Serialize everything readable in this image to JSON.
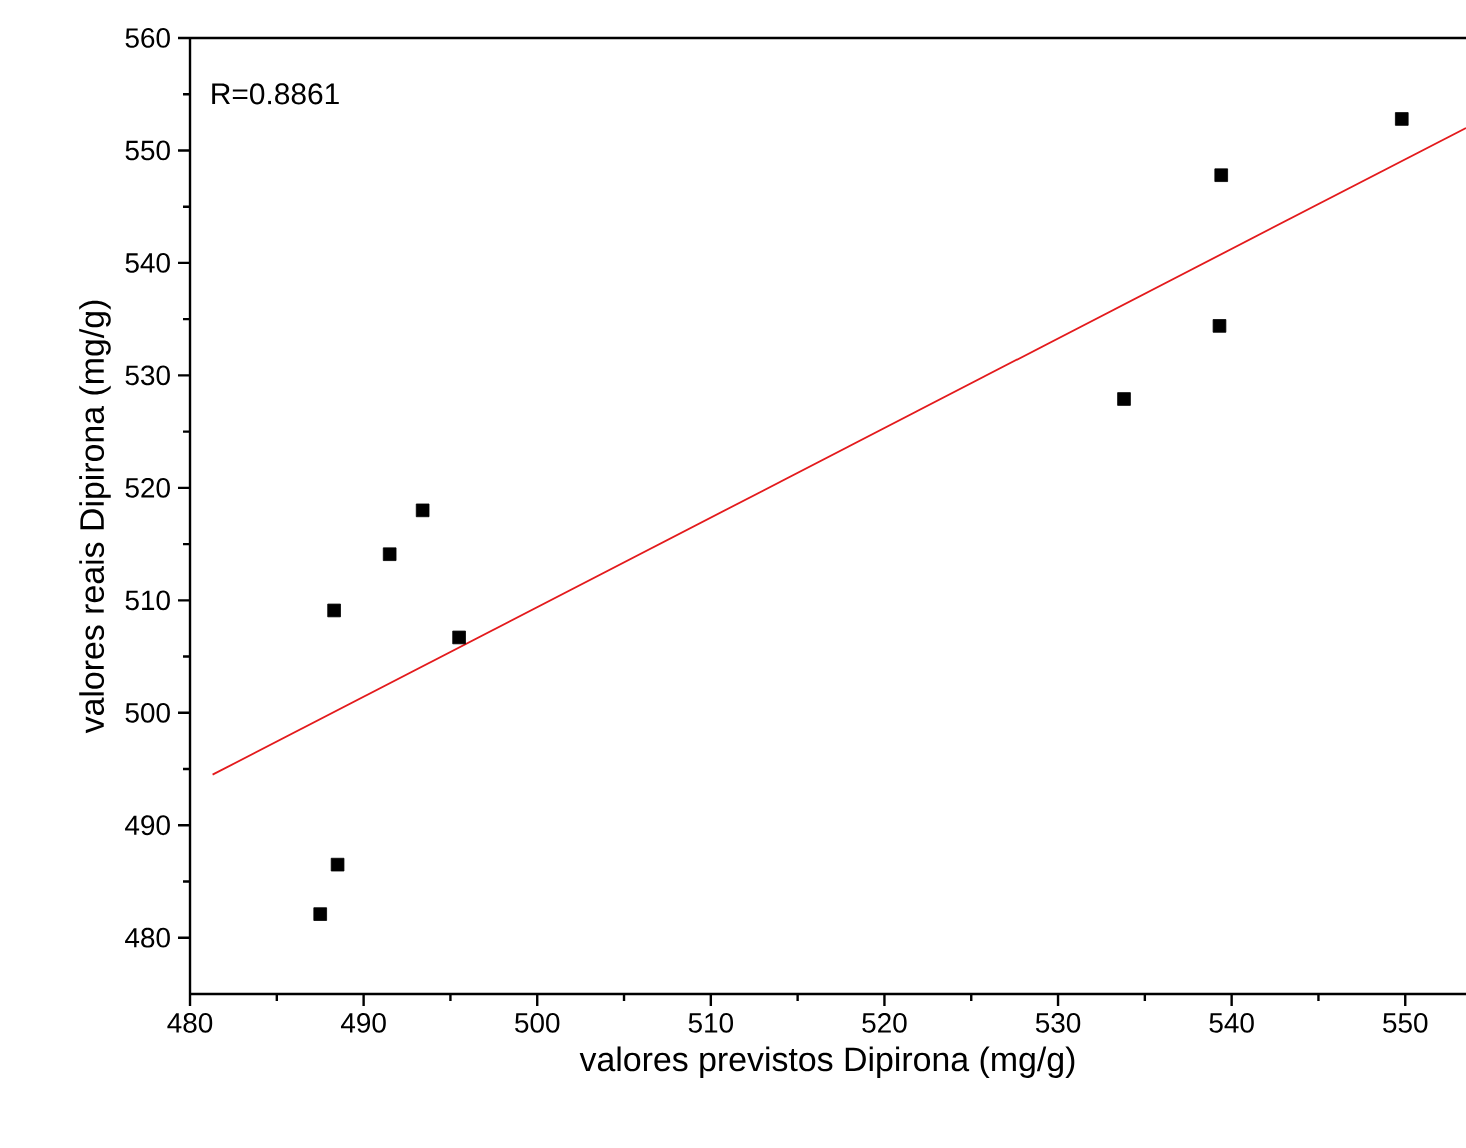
{
  "chart_data": {
    "type": "scatter",
    "xlabel": "valores previstos Dipirona (mg/g)",
    "ylabel": "valores reais Dipirona (mg/g)",
    "xlim": [
      480,
      553.5
    ],
    "ylim": [
      475,
      560
    ],
    "xticks": [
      480,
      490,
      500,
      510,
      520,
      530,
      540,
      550
    ],
    "yticks": [
      480,
      490,
      500,
      510,
      520,
      530,
      540,
      550,
      560
    ],
    "grid": false,
    "marker": "square",
    "annotations": [
      "R=0.8861"
    ],
    "series": [
      {
        "color": "#000000",
        "x": [
          487.5,
          488.5,
          488.3,
          491.5,
          493.4,
          495.5,
          533.8,
          539.3,
          539.4,
          549.8
        ],
        "values": [
          482.1,
          486.5,
          509.1,
          514.1,
          518.0,
          506.7,
          527.9,
          534.4,
          547.8,
          552.8
        ]
      },
      {
        "type": "line",
        "color": "#e31a1c",
        "x": [
          481.3,
          553.5
        ],
        "values": [
          494.5,
          552.0
        ],
        "marker": "none"
      }
    ]
  }
}
